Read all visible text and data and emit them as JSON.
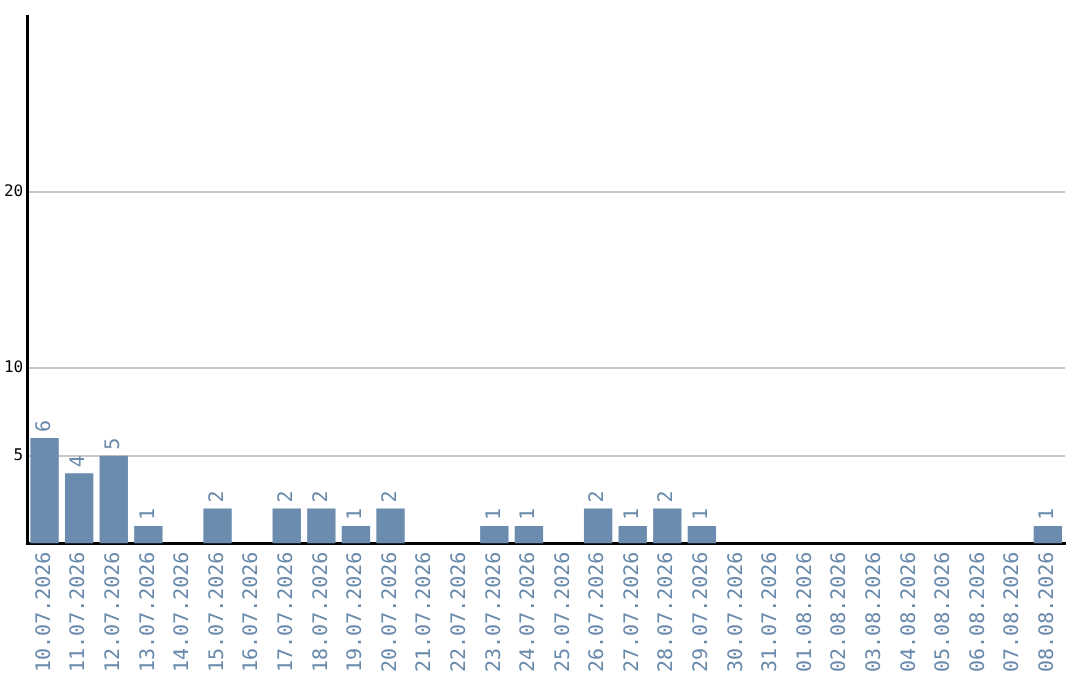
{
  "chart_data": {
    "type": "bar",
    "categories": [
      "10.07.2026",
      "11.07.2026",
      "12.07.2026",
      "13.07.2026",
      "14.07.2026",
      "15.07.2026",
      "16.07.2026",
      "17.07.2026",
      "18.07.2026",
      "19.07.2026",
      "20.07.2026",
      "21.07.2026",
      "22.07.2026",
      "23.07.2026",
      "24.07.2026",
      "25.07.2026",
      "26.07.2026",
      "27.07.2026",
      "28.07.2026",
      "29.07.2026",
      "30.07.2026",
      "31.07.2026",
      "01.08.2026",
      "02.08.2026",
      "03.08.2026",
      "04.08.2026",
      "05.08.2026",
      "06.08.2026",
      "07.08.2026",
      "08.08.2026"
    ],
    "values": [
      6,
      4,
      5,
      1,
      0,
      2,
      0,
      2,
      2,
      1,
      2,
      0,
      0,
      1,
      1,
      0,
      2,
      1,
      2,
      1,
      0,
      0,
      0,
      0,
      0,
      0,
      0,
      0,
      0,
      1
    ],
    "value_labels": [
      "6",
      "4",
      "5",
      "1",
      null,
      "2",
      null,
      "2",
      "2",
      "1",
      "2",
      null,
      null,
      "1",
      "1",
      null,
      "2",
      "1",
      "2",
      "1",
      null,
      null,
      null,
      null,
      null,
      null,
      null,
      null,
      null,
      "1"
    ],
    "color": "#6b8cae",
    "ylim": [
      0,
      30
    ],
    "yticks": [
      5,
      10,
      20
    ],
    "grid": "y",
    "legend": false
  }
}
